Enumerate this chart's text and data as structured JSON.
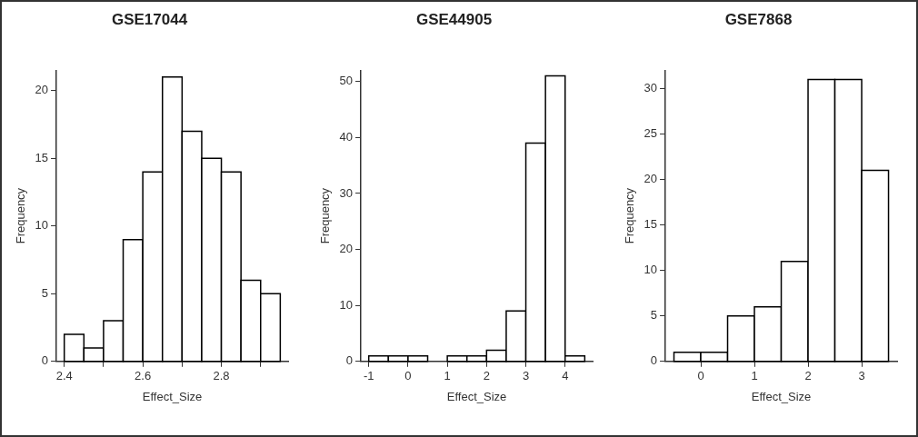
{
  "chart_data": [
    {
      "type": "histogram",
      "title": "GSE17044",
      "xlabel": "Effect_Size",
      "ylabel": "Frequency",
      "color": "#ffffff",
      "bins": [
        2.4,
        2.45,
        2.5,
        2.55,
        2.6,
        2.65,
        2.7,
        2.75,
        2.8,
        2.85,
        2.9,
        2.95
      ],
      "values": [
        2,
        1,
        3,
        9,
        14,
        21,
        17,
        15,
        14,
        6,
        5
      ],
      "xlim": [
        2.38,
        2.97
      ],
      "xticks": [
        2.4,
        {
          "value": 2.5,
          "label": null
        },
        2.6,
        {
          "value": 2.7,
          "label": null
        },
        2.8,
        {
          "value": 2.9,
          "label": null
        }
      ],
      "ylim": [
        0,
        21.5
      ],
      "yticks": [
        0,
        5,
        10,
        15,
        20
      ],
      "grid": false,
      "legend": false
    },
    {
      "type": "histogram",
      "title": "GSE44905",
      "xlabel": "Effect_Size",
      "ylabel": "Frequency",
      "color": "#ffffff",
      "bins": [
        -1,
        -0.5,
        0,
        0.5,
        1,
        1.5,
        2,
        2.5,
        3,
        3.5,
        4,
        4.5
      ],
      "values": [
        1,
        1,
        1,
        0,
        1,
        1,
        2,
        9,
        39,
        51,
        1
      ],
      "xlim": [
        -1.2,
        4.7
      ],
      "xticks": [
        -1,
        0,
        1,
        2,
        3,
        4
      ],
      "ylim": [
        0,
        52
      ],
      "yticks": [
        0,
        10,
        20,
        30,
        40,
        50
      ],
      "grid": false,
      "legend": false
    },
    {
      "type": "histogram",
      "title": "GSE7868",
      "xlabel": "Effect_Size",
      "ylabel": "Frequency",
      "color": "#ffffff",
      "bins": [
        -0.5,
        0,
        0.5,
        1,
        1.5,
        2,
        2.5,
        3,
        3.5
      ],
      "values": [
        1,
        1,
        5,
        6,
        11,
        31,
        31,
        21
      ],
      "xlim": [
        -0.66,
        3.66
      ],
      "xticks": [
        0,
        1,
        2,
        3
      ],
      "ylim": [
        0,
        32
      ],
      "yticks": [
        0,
        5,
        10,
        15,
        20,
        25,
        30
      ],
      "grid": false,
      "legend": false
    }
  ]
}
